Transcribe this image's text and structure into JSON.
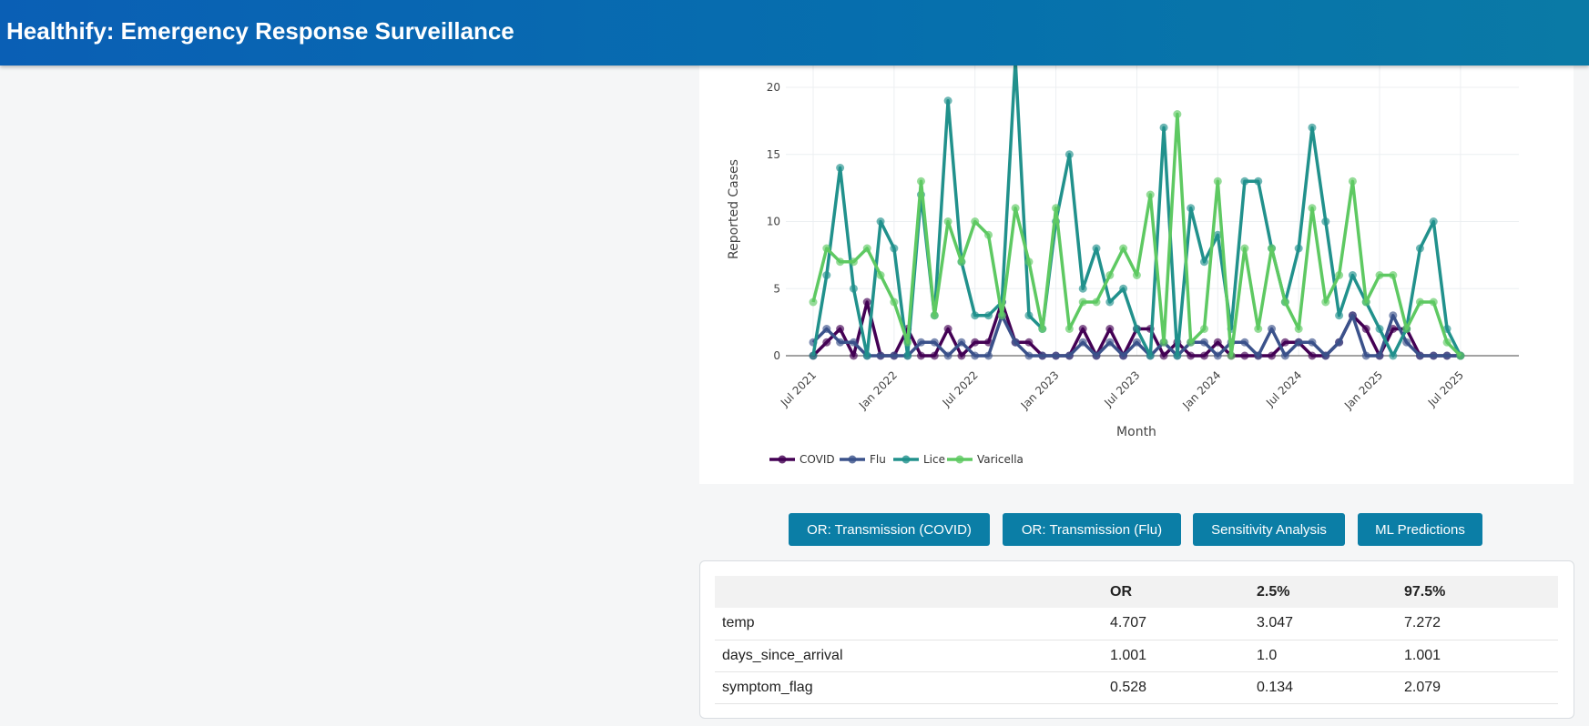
{
  "header": {
    "title": "Healthify: Emergency Response Surveillance"
  },
  "colors": {
    "COVID": "#440154",
    "Flu": "#3b528b",
    "Lice": "#21918c",
    "Varicella": "#5ec962",
    "button": "#0b7ea6",
    "header": "#0a5fb5"
  },
  "chart_data": {
    "type": "line",
    "xlabel": "Month",
    "ylabel": "Reported Cases",
    "ylim": [
      0,
      22
    ],
    "y_ticks": [
      0,
      5,
      10,
      15,
      20
    ],
    "x_ticks": [
      "Jul 2021",
      "Jan 2022",
      "Jul 2022",
      "Jan 2023",
      "Jul 2023",
      "Jan 2024",
      "Jul 2024",
      "Jan 2025",
      "Jul 2025"
    ],
    "x_start": "2021-07",
    "x": [
      "2021-07",
      "2021-08",
      "2021-09",
      "2021-10",
      "2021-11",
      "2021-12",
      "2022-01",
      "2022-02",
      "2022-03",
      "2022-04",
      "2022-05",
      "2022-06",
      "2022-07",
      "2022-08",
      "2022-09",
      "2022-10",
      "2022-11",
      "2022-12",
      "2023-01",
      "2023-02",
      "2023-03",
      "2023-04",
      "2023-05",
      "2023-06",
      "2023-07",
      "2023-08",
      "2023-09",
      "2023-10",
      "2023-11",
      "2023-12",
      "2024-01",
      "2024-02",
      "2024-03",
      "2024-04",
      "2024-05",
      "2024-06",
      "2024-07",
      "2024-08",
      "2024-09",
      "2024-10",
      "2024-11",
      "2024-12",
      "2025-01",
      "2025-02",
      "2025-03",
      "2025-04",
      "2025-05",
      "2025-06",
      "2025-07"
    ],
    "grid": true,
    "legend_position": "bottom-left",
    "series": [
      {
        "name": "COVID",
        "values": [
          0,
          1,
          2,
          0,
          4,
          0,
          0,
          2,
          0,
          0,
          2,
          0,
          1,
          1,
          4,
          1,
          1,
          0,
          0,
          0,
          2,
          0,
          2,
          0,
          2,
          2,
          0,
          1,
          0,
          0,
          1,
          0,
          0,
          0,
          0,
          1,
          1,
          0,
          0,
          1,
          3,
          2,
          0,
          2,
          2,
          0,
          0,
          0,
          0
        ]
      },
      {
        "name": "Flu",
        "values": [
          1,
          2,
          1,
          1,
          0,
          0,
          0,
          0,
          1,
          1,
          0,
          1,
          0,
          0,
          3,
          1,
          0,
          0,
          0,
          0,
          1,
          0,
          1,
          0,
          1,
          0,
          1,
          0,
          1,
          1,
          0,
          1,
          1,
          0,
          2,
          0,
          1,
          1,
          0,
          1,
          3,
          0,
          0,
          3,
          1,
          0,
          0,
          0,
          0
        ]
      },
      {
        "name": "Lice",
        "values": [
          0,
          6,
          14,
          5,
          0,
          10,
          8,
          0,
          12,
          3,
          19,
          7,
          3,
          3,
          4,
          22,
          3,
          2,
          10,
          15,
          5,
          8,
          4,
          5,
          2,
          0,
          17,
          0,
          11,
          7,
          9,
          2,
          13,
          13,
          8,
          4,
          8,
          17,
          10,
          3,
          6,
          4,
          2,
          0,
          2,
          8,
          10,
          2,
          0
        ]
      },
      {
        "name": "Varicella",
        "values": [
          4,
          8,
          7,
          7,
          8,
          6,
          4,
          1,
          13,
          3,
          10,
          7,
          10,
          9,
          3,
          11,
          7,
          2,
          11,
          2,
          4,
          4,
          6,
          8,
          6,
          12,
          1,
          18,
          1,
          2,
          13,
          0,
          8,
          2,
          8,
          4,
          2,
          11,
          4,
          6,
          13,
          4,
          6,
          6,
          2,
          4,
          4,
          1,
          0
        ]
      }
    ]
  },
  "buttons": [
    {
      "label": "OR: Transmission (COVID)"
    },
    {
      "label": "OR: Transmission (Flu)"
    },
    {
      "label": "Sensitivity Analysis"
    },
    {
      "label": "ML Predictions"
    }
  ],
  "table": {
    "columns": [
      "",
      "OR",
      "2.5%",
      "97.5%"
    ],
    "rows": [
      [
        "temp",
        "4.707",
        "3.047",
        "7.272"
      ],
      [
        "days_since_arrival",
        "1.001",
        "1.0",
        "1.001"
      ],
      [
        "symptom_flag",
        "0.528",
        "0.134",
        "2.079"
      ]
    ]
  }
}
